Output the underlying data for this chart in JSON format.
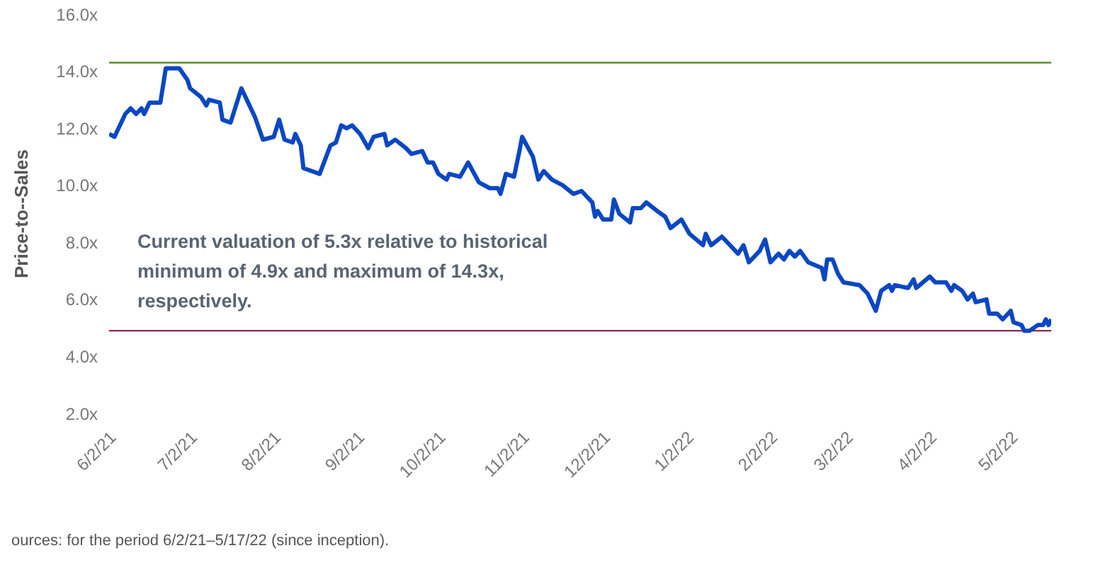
{
  "chart_data": {
    "type": "line",
    "ylabel": "Price-to--Sales",
    "annotations": [
      "Current valuation of 5.3x relative to historical minimum of 4.9x and maximum of 14.3x, respectively.",
      "ources: for the period 6/2/21–5/17/22 (since inception)."
    ],
    "xlim": [
      "2021-06-02",
      "2022-05-17"
    ],
    "xticks": [
      {
        "value": "2021-06-02",
        "label": "6/2/21"
      },
      {
        "value": "2021-07-02",
        "label": "7/2/21"
      },
      {
        "value": "2021-08-02",
        "label": "8/2/21"
      },
      {
        "value": "2021-09-02",
        "label": "9/2/21"
      },
      {
        "value": "2021-10-02",
        "label": "10/2/21"
      },
      {
        "value": "2021-11-02",
        "label": "11/2/21"
      },
      {
        "value": "2021-12-02",
        "label": "12/2/21"
      },
      {
        "value": "2022-01-02",
        "label": "1/2/22"
      },
      {
        "value": "2022-02-02",
        "label": "2/2/22"
      },
      {
        "value": "2022-03-02",
        "label": "3/2/22"
      },
      {
        "value": "2022-04-02",
        "label": "4/2/22"
      },
      {
        "value": "2022-05-02",
        "label": "5/2/22"
      }
    ],
    "ylim": [
      2,
      16
    ],
    "yticks": [
      {
        "value": 2,
        "label": "2.0x"
      },
      {
        "value": 4,
        "label": "4.0x"
      },
      {
        "value": 6,
        "label": "6.0x"
      },
      {
        "value": 8,
        "label": "8.0x"
      },
      {
        "value": 10,
        "label": "10.0x"
      },
      {
        "value": 12,
        "label": "12.0x"
      },
      {
        "value": 14,
        "label": "14.0x"
      },
      {
        "value": 16,
        "label": "16.0x"
      }
    ],
    "grid": false,
    "legend": false,
    "marker": "none",
    "line_style": "solid",
    "ref_lines": [
      {
        "axis": "y",
        "value": 14.3,
        "color": "#5e8c2c"
      },
      {
        "axis": "y",
        "value": 4.9,
        "color": "#8c2a4e"
      }
    ],
    "x": [
      "2021-06-02",
      "2021-06-04",
      "2021-06-08",
      "2021-06-10",
      "2021-06-12",
      "2021-06-14",
      "2021-06-15",
      "2021-06-17",
      "2021-06-21",
      "2021-06-23",
      "2021-06-28",
      "2021-07-01",
      "2021-07-02",
      "2021-07-06",
      "2021-07-08",
      "2021-07-09",
      "2021-07-13",
      "2021-07-14",
      "2021-07-17",
      "2021-07-20",
      "2021-07-21",
      "2021-07-23",
      "2021-07-26",
      "2021-07-29",
      "2021-08-02",
      "2021-08-04",
      "2021-08-06",
      "2021-08-09",
      "2021-08-10",
      "2021-08-12",
      "2021-08-13",
      "2021-08-19",
      "2021-08-23",
      "2021-08-25",
      "2021-08-27",
      "2021-08-29",
      "2021-08-31",
      "2021-09-03",
      "2021-09-06",
      "2021-09-08",
      "2021-09-12",
      "2021-09-13",
      "2021-09-16",
      "2021-09-20",
      "2021-09-22",
      "2021-09-26",
      "2021-09-28",
      "2021-09-30",
      "2021-10-02",
      "2021-10-05",
      "2021-10-06",
      "2021-10-10",
      "2021-10-13",
      "2021-10-17",
      "2021-10-21",
      "2021-10-24",
      "2021-10-25",
      "2021-10-27",
      "2021-10-30",
      "2021-11-01",
      "2021-11-02",
      "2021-11-06",
      "2021-11-08",
      "2021-11-10",
      "2021-11-13",
      "2021-11-17",
      "2021-11-21",
      "2021-11-24",
      "2021-11-28",
      "2021-11-29",
      "2021-11-30",
      "2021-12-02",
      "2021-12-05",
      "2021-12-06",
      "2021-12-08",
      "2021-12-12",
      "2021-12-13",
      "2021-12-16",
      "2021-12-18",
      "2021-12-22",
      "2021-12-25",
      "2021-12-27",
      "2021-12-31",
      "2022-01-03",
      "2022-01-08",
      "2022-01-09",
      "2022-01-11",
      "2022-01-15",
      "2022-01-17",
      "2022-01-21",
      "2022-01-23",
      "2022-01-25",
      "2022-01-29",
      "2022-01-31",
      "2022-02-02",
      "2022-02-05",
      "2022-02-07",
      "2022-02-09",
      "2022-02-11",
      "2022-02-13",
      "2022-02-16",
      "2022-02-21",
      "2022-02-22",
      "2022-02-23",
      "2022-02-25",
      "2022-02-27",
      "2022-03-01",
      "2022-03-07",
      "2022-03-10",
      "2022-03-13",
      "2022-03-15",
      "2022-03-18",
      "2022-03-19",
      "2022-03-20",
      "2022-03-25",
      "2022-03-27",
      "2022-03-28",
      "2022-04-02",
      "2022-04-04",
      "2022-04-08",
      "2022-04-10",
      "2022-04-11",
      "2022-04-14",
      "2022-04-16",
      "2022-04-18",
      "2022-04-19",
      "2022-04-23",
      "2022-04-24",
      "2022-04-27",
      "2022-04-29",
      "2022-05-02",
      "2022-05-03",
      "2022-05-06",
      "2022-05-07",
      "2022-05-09",
      "2022-05-12",
      "2022-05-14",
      "2022-05-15",
      "2022-05-16",
      "2022-05-17"
    ],
    "series": [
      {
        "color": "#0a47c2",
        "values": [
          11.8,
          11.7,
          12.5,
          12.7,
          12.5,
          12.7,
          12.5,
          12.9,
          12.9,
          14.1,
          14.1,
          13.7,
          13.4,
          13.1,
          12.8,
          13.0,
          12.9,
          12.3,
          12.2,
          13.1,
          13.4,
          13.0,
          12.4,
          11.6,
          11.7,
          12.3,
          11.6,
          11.5,
          11.8,
          11.4,
          10.6,
          10.4,
          11.4,
          11.5,
          12.1,
          12.0,
          12.1,
          11.8,
          11.3,
          11.7,
          11.8,
          11.4,
          11.6,
          11.3,
          11.1,
          11.2,
          10.8,
          10.8,
          10.4,
          10.2,
          10.4,
          10.3,
          10.8,
          10.1,
          9.9,
          9.9,
          9.7,
          10.4,
          10.3,
          11.2,
          11.7,
          11.0,
          10.2,
          10.5,
          10.2,
          10.0,
          9.7,
          9.8,
          9.4,
          8.9,
          9.1,
          8.8,
          8.8,
          9.5,
          9.0,
          8.7,
          9.2,
          9.2,
          9.4,
          9.1,
          8.9,
          8.5,
          8.8,
          8.3,
          7.9,
          8.3,
          7.9,
          8.2,
          8.0,
          7.6,
          7.9,
          7.3,
          7.7,
          8.1,
          7.3,
          7.6,
          7.4,
          7.7,
          7.5,
          7.7,
          7.3,
          7.1,
          6.7,
          7.4,
          7.4,
          6.9,
          6.6,
          6.5,
          6.2,
          5.6,
          6.3,
          6.5,
          6.3,
          6.5,
          6.4,
          6.7,
          6.4,
          6.8,
          6.6,
          6.6,
          6.3,
          6.5,
          6.3,
          6.0,
          6.2,
          5.9,
          6.0,
          5.5,
          5.5,
          5.3,
          5.6,
          5.2,
          5.1,
          4.9,
          4.9,
          5.1,
          5.1,
          5.3,
          5.1,
          5.3
        ]
      }
    ]
  }
}
